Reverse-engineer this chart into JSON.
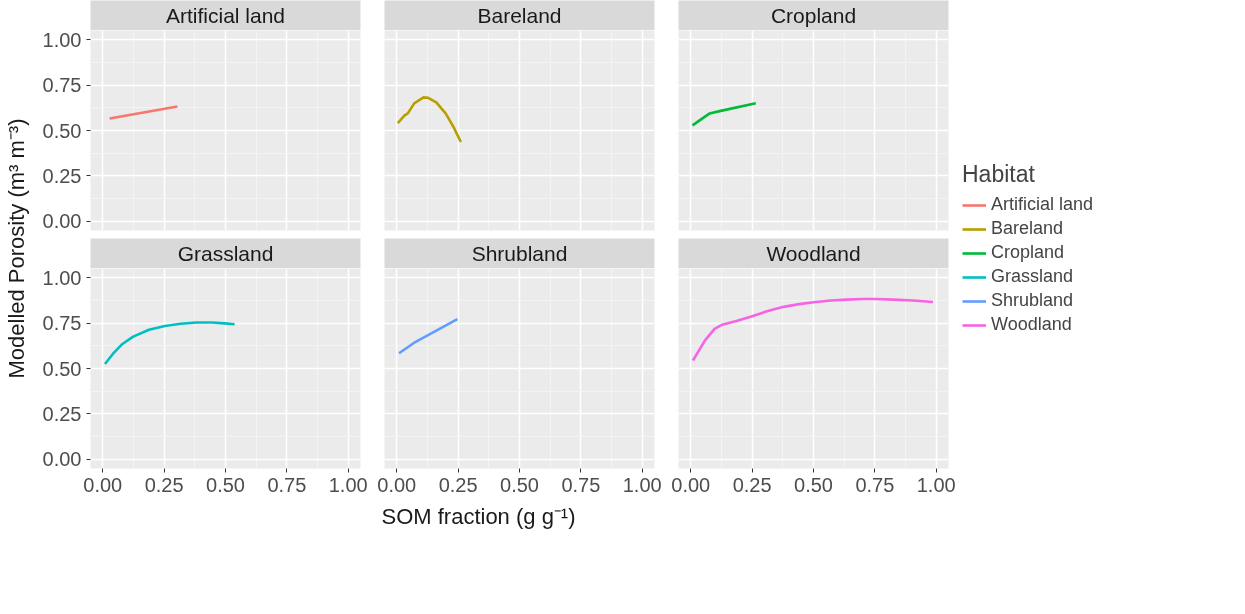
{
  "chart_data": [
    {
      "type": "line",
      "title": "Artificial land",
      "xlabel": "SOM fraction (g g⁻¹)",
      "ylabel": "Modelled Porosity (m³ m⁻³)",
      "legend_title": "Habitat",
      "legend": "right",
      "grid": true,
      "tick_labels": "y",
      "xlim": [
        -0.05,
        1.05
      ],
      "ylim": [
        -0.05,
        1.05
      ],
      "xticks": [
        0,
        0.25,
        0.5,
        0.75,
        1
      ],
      "yticks": [
        {
          "value": 0,
          "label": "0.00"
        },
        {
          "value": 0.25,
          "label": "0.25"
        },
        {
          "value": 0.5,
          "label": "0.50"
        },
        {
          "value": 0.75,
          "label": "0.75"
        },
        {
          "value": 1,
          "label": "1.00"
        }
      ],
      "series": [
        {
          "name": "Artificial land",
          "color": "#f8766d",
          "x": [
            0.028,
            0.304
          ],
          "values": [
            0.566,
            0.632
          ]
        }
      ]
    },
    {
      "type": "line",
      "title": "Bareland",
      "legend": "right",
      "grid": true,
      "tick_labels": false,
      "xlim": [
        -0.05,
        1.05
      ],
      "ylim": [
        -0.05,
        1.05
      ],
      "xticks": [
        0,
        0.25,
        0.5,
        0.75,
        1
      ],
      "yticks": [
        0,
        0.25,
        0.5,
        0.75,
        1
      ],
      "series": [
        {
          "name": "Bareland",
          "color": "#b79f00",
          "x": [
            0.004,
            0.032,
            0.045,
            0.071,
            0.109,
            0.128,
            0.161,
            0.199,
            0.231,
            0.261
          ],
          "values": [
            0.541,
            0.583,
            0.594,
            0.649,
            0.682,
            0.68,
            0.655,
            0.594,
            0.52,
            0.437
          ]
        }
      ]
    },
    {
      "type": "line",
      "title": "Cropland",
      "legend": "right",
      "grid": true,
      "tick_labels": false,
      "xlim": [
        -0.05,
        1.05
      ],
      "ylim": [
        -0.05,
        1.05
      ],
      "xticks": [
        0,
        0.25,
        0.5,
        0.75,
        1
      ],
      "yticks": [
        0,
        0.25,
        0.5,
        0.75,
        1
      ],
      "series": [
        {
          "name": "Cropland",
          "color": "#00ba38",
          "x": [
            0.007,
            0.077,
            0.122,
            0.265
          ],
          "values": [
            0.528,
            0.594,
            0.608,
            0.65
          ]
        }
      ]
    },
    {
      "type": "line",
      "title": "Grassland",
      "legend": "right",
      "grid": true,
      "xlim": [
        -0.05,
        1.05
      ],
      "ylim": [
        -0.05,
        1.05
      ],
      "xticks": [
        {
          "value": 0,
          "label": "0.00"
        },
        {
          "value": 0.25,
          "label": "0.25"
        },
        {
          "value": 0.5,
          "label": "0.50"
        },
        {
          "value": 0.75,
          "label": "0.75"
        },
        {
          "value": 1,
          "label": "1.00"
        }
      ],
      "yticks": [
        {
          "value": 0,
          "label": "0.00"
        },
        {
          "value": 0.25,
          "label": "0.25"
        },
        {
          "value": 0.5,
          "label": "0.50"
        },
        {
          "value": 0.75,
          "label": "0.75"
        },
        {
          "value": 1,
          "label": "1.00"
        }
      ],
      "series": [
        {
          "name": "Grassland",
          "color": "#00bfc4",
          "x": [
            0.009,
            0.041,
            0.08,
            0.124,
            0.188,
            0.253,
            0.317,
            0.381,
            0.445,
            0.496,
            0.537
          ],
          "values": [
            0.525,
            0.58,
            0.635,
            0.675,
            0.713,
            0.734,
            0.746,
            0.753,
            0.753,
            0.748,
            0.743
          ]
        }
      ]
    },
    {
      "type": "line",
      "title": "Shrubland",
      "legend": "right",
      "grid": true,
      "tick_labels": "x",
      "xlim": [
        -0.05,
        1.05
      ],
      "ylim": [
        -0.05,
        1.05
      ],
      "xticks": [
        {
          "value": 0,
          "label": "0.00"
        },
        {
          "value": 0.25,
          "label": "0.25"
        },
        {
          "value": 0.5,
          "label": "0.50"
        },
        {
          "value": 0.75,
          "label": "0.75"
        },
        {
          "value": 1,
          "label": "1.00"
        }
      ],
      "yticks": [
        0,
        0.25,
        0.5,
        0.75,
        1
      ],
      "series": [
        {
          "name": "Shrubland",
          "color": "#619cff",
          "x": [
            0.009,
            0.077,
            0.135,
            0.247
          ],
          "values": [
            0.584,
            0.647,
            0.689,
            0.771
          ]
        }
      ]
    },
    {
      "type": "line",
      "title": "Woodland",
      "legend": "right",
      "grid": true,
      "tick_labels": "x",
      "xlim": [
        -0.05,
        1.05
      ],
      "ylim": [
        -0.05,
        1.05
      ],
      "xticks": [
        {
          "value": 0,
          "label": "0.00"
        },
        {
          "value": 0.25,
          "label": "0.25"
        },
        {
          "value": 0.5,
          "label": "0.50"
        },
        {
          "value": 0.75,
          "label": "0.75"
        },
        {
          "value": 1,
          "label": "1.00"
        }
      ],
      "yticks": [
        0,
        0.25,
        0.5,
        0.75,
        1
      ],
      "series": [
        {
          "name": "Woodland",
          "color": "#f564e3",
          "x": [
            0.009,
            0.058,
            0.097,
            0.128,
            0.186,
            0.25,
            0.314,
            0.378,
            0.442,
            0.5,
            0.571,
            0.635,
            0.699,
            0.75,
            0.827,
            0.904,
            0.987
          ],
          "values": [
            0.544,
            0.655,
            0.718,
            0.741,
            0.761,
            0.788,
            0.816,
            0.839,
            0.854,
            0.864,
            0.874,
            0.879,
            0.882,
            0.882,
            0.879,
            0.874,
            0.866
          ]
        }
      ]
    }
  ]
}
